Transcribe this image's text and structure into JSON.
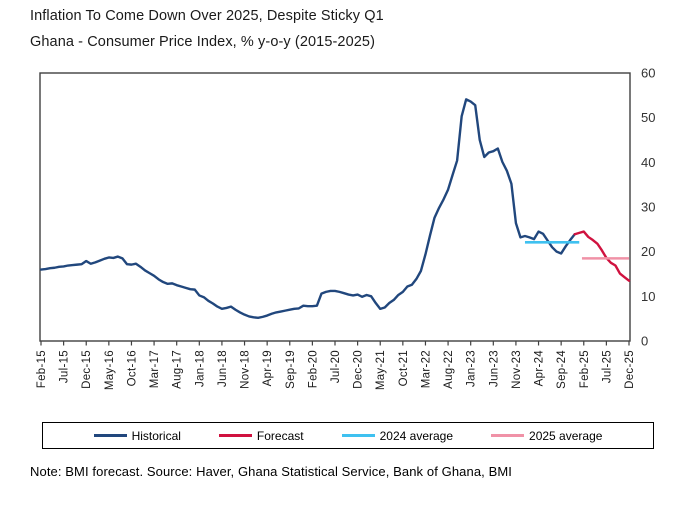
{
  "header": {
    "title": "Inflation To Come Down Over 2025, Despite Sticky Q1",
    "subtitle": "Ghana - Consumer Price Index, % y-o-y (2015-2025)"
  },
  "footnote": "Note: BMI forecast. Source: Haver, Ghana Statistical Service, Bank of Ghana, BMI",
  "legend": {
    "items": [
      {
        "label": "Historical",
        "color": "#21477d"
      },
      {
        "label": "Forecast",
        "color": "#d0123f"
      },
      {
        "label": "2024 average",
        "color": "#3fc1f0"
      },
      {
        "label": "2025 average",
        "color": "#f092a7"
      }
    ]
  },
  "chart_data": {
    "type": "line",
    "title": "Ghana - Consumer Price Index, % y-o-y (2015-2025)",
    "xlabel": "",
    "ylabel": "% y-o-y",
    "ylim": [
      0,
      60
    ],
    "y_ticks": [
      0,
      10,
      20,
      30,
      40,
      50,
      60
    ],
    "y_axis_side": "right",
    "grid": false,
    "x_start_month": "Feb-15",
    "x_end_month": "Dec-25",
    "months_total": 131,
    "x_tick_step_months": 5,
    "x_tick_labels": [
      "Feb-15",
      "Jul-15",
      "Dec-15",
      "May-16",
      "Oct-16",
      "Mar-17",
      "Aug-17",
      "Jan-18",
      "Jun-18",
      "Nov-18",
      "Apr-19",
      "Sep-19",
      "Feb-20",
      "Jul-20",
      "Dec-20",
      "May-21",
      "Oct-21",
      "Mar-22",
      "Aug-22",
      "Jan-23",
      "Jun-23",
      "Nov-23",
      "Apr-24",
      "Sep-24",
      "Feb-25",
      "Jul-25",
      "Dec-25"
    ],
    "series": [
      {
        "name": "Historical",
        "kind": "line",
        "color": "#21477d",
        "start_index": 0,
        "values": [
          16.0,
          16.1,
          16.3,
          16.4,
          16.6,
          16.7,
          16.9,
          17.0,
          17.1,
          17.2,
          17.9,
          17.3,
          17.6,
          18.0,
          18.4,
          18.7,
          18.6,
          18.9,
          18.5,
          17.2,
          17.1,
          17.3,
          16.6,
          15.8,
          15.2,
          14.6,
          13.8,
          13.2,
          12.8,
          12.9,
          12.5,
          12.2,
          11.9,
          11.6,
          11.5,
          10.2,
          9.8,
          9.0,
          8.4,
          7.7,
          7.2,
          7.4,
          7.7,
          7.0,
          6.4,
          5.9,
          5.5,
          5.3,
          5.2,
          5.4,
          5.7,
          6.1,
          6.4,
          6.6,
          6.8,
          7.0,
          7.2,
          7.3,
          7.9,
          7.8,
          7.8,
          7.9,
          10.6,
          11.0,
          11.2,
          11.2,
          11.0,
          10.7,
          10.4,
          10.2,
          10.4,
          9.9,
          10.3,
          10.0,
          8.5,
          7.2,
          7.5,
          8.5,
          9.2,
          10.3,
          11.0,
          12.2,
          12.6,
          13.9,
          15.7,
          19.4,
          23.6,
          27.6,
          29.8,
          31.7,
          33.9,
          37.2,
          40.4,
          50.3,
          54.1,
          53.6,
          52.8,
          45.0,
          41.2,
          42.2,
          42.5,
          43.1,
          40.1,
          38.1,
          35.2,
          26.4,
          23.2,
          23.5,
          23.2,
          22.8,
          24.5,
          24.0,
          22.5,
          21.0,
          20.0,
          19.6,
          21.2,
          22.6,
          23.9
        ]
      },
      {
        "name": "Forecast",
        "kind": "line",
        "color": "#d0123f",
        "start_index": 118,
        "values": [
          23.9,
          24.2,
          24.5,
          23.3,
          22.6,
          21.8,
          20.3,
          18.6,
          17.5,
          16.9,
          15.1,
          14.3,
          13.5
        ]
      },
      {
        "name": "2024 average",
        "kind": "hline",
        "color": "#3fc1f0",
        "value": 22.1,
        "start_month": "Jan-24",
        "end_month": "Dec-24",
        "start_index": 107,
        "end_index": 119
      },
      {
        "name": "2025 average",
        "kind": "hline",
        "color": "#f092a7",
        "value": 18.5,
        "start_month": "Jan-25",
        "end_month": "Dec-25",
        "start_index": 119.6,
        "end_index": 130
      }
    ]
  }
}
